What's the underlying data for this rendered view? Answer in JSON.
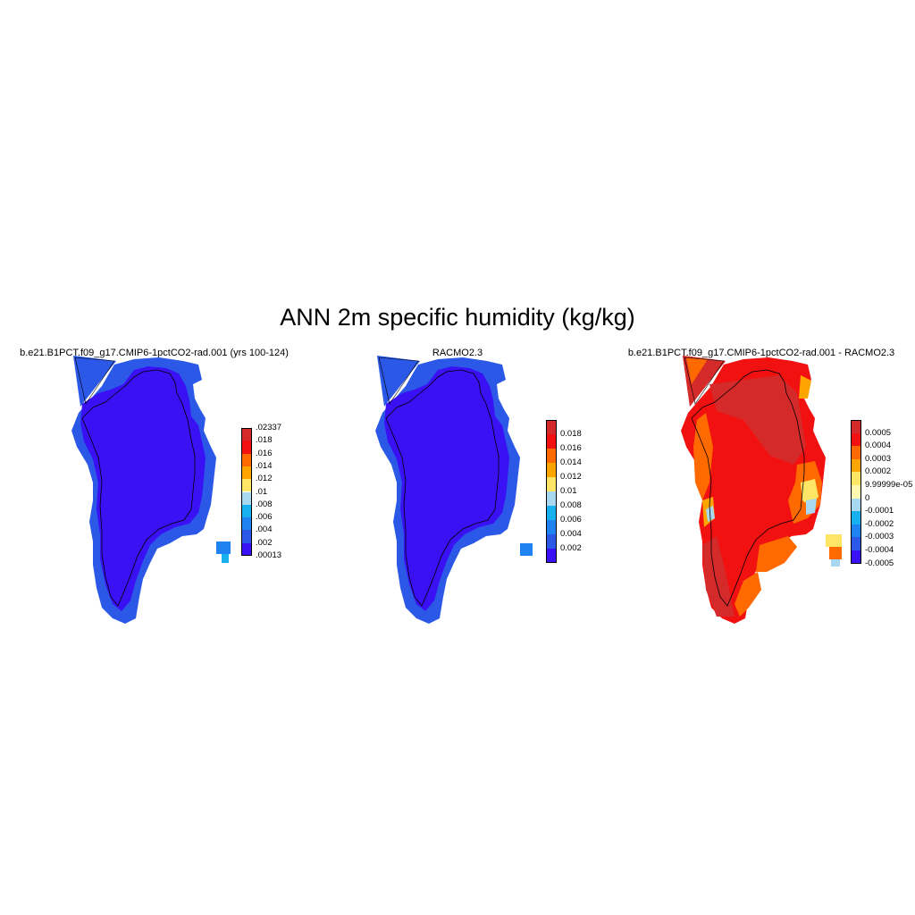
{
  "title": "ANN 2m specific humidity (kg/kg)",
  "panels": [
    {
      "title": "b.e21.B1PCT.f09_g17.CMIP6-1pctCO2-rad.001 (yrs 100-124)",
      "colorbar": {
        "labels": [
          ".02337",
          ".018",
          ".016",
          ".014",
          ".012",
          ".01",
          ".008",
          ".006",
          ".004",
          ".002",
          ".00013"
        ],
        "colors": [
          "#d52a2a",
          "#f21111",
          "#ff6a00",
          "#ffa500",
          "#ffe566",
          "#a8d8f0",
          "#19b0f0",
          "#1e82f0",
          "#2b58e6",
          "#3a10f5"
        ]
      }
    },
    {
      "title": "RACMO2.3",
      "colorbar": {
        "labels": [
          "0.018",
          "0.016",
          "0.014",
          "0.012",
          "0.01",
          "0.008",
          "0.006",
          "0.004",
          "0.002"
        ],
        "colors": [
          "#d52a2a",
          "#f21111",
          "#ff6a00",
          "#ffa500",
          "#ffe566",
          "#a8d8f0",
          "#19b0f0",
          "#1e82f0",
          "#2b58e6",
          "#3a10f5"
        ]
      }
    },
    {
      "title": "b.e21.B1PCT.f09_g17.CMIP6-1pctCO2-rad.001 - RACMO2.3",
      "colorbar": {
        "labels": [
          "0.0005",
          "0.0004",
          "0.0003",
          "0.0002",
          "9.99999e-05",
          "0",
          "-0.0001",
          "-0.0002",
          "-0.0003",
          "-0.0004",
          "-0.0005"
        ],
        "colors": [
          "#d52a2a",
          "#f21111",
          "#ff6a00",
          "#ffa500",
          "#ffe566",
          "#fff8b0",
          "#a8d8f0",
          "#19b0f0",
          "#1e82f0",
          "#2b58e6",
          "#3a10f5"
        ]
      }
    }
  ]
}
